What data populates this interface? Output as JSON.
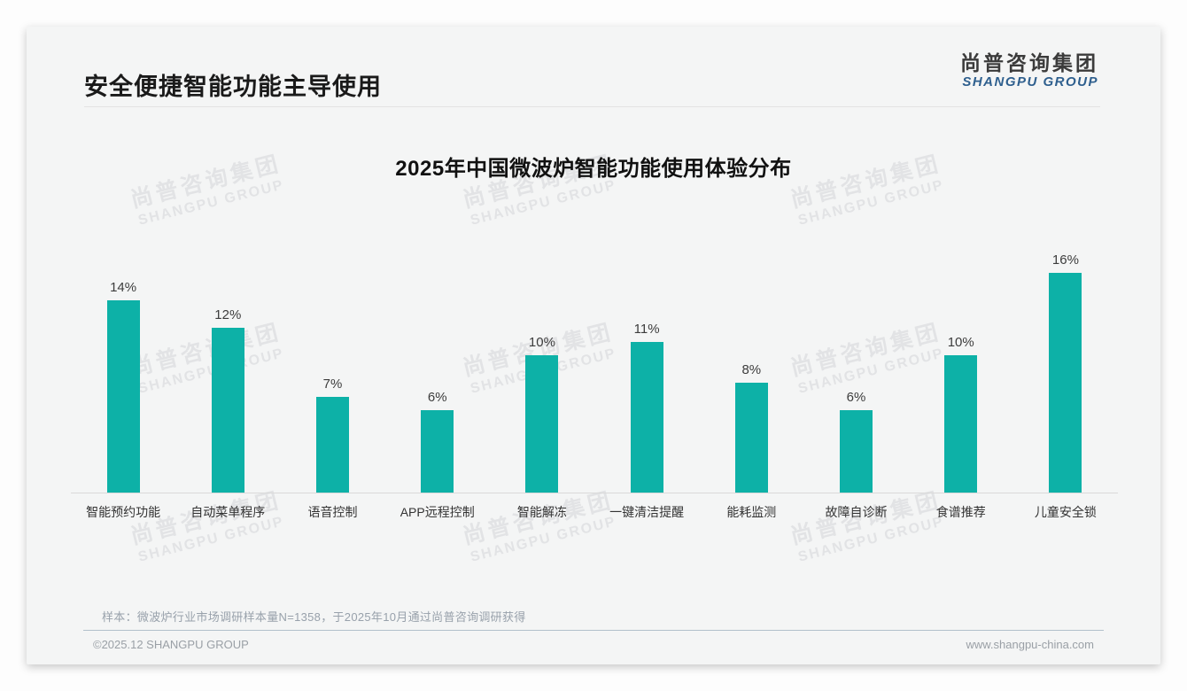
{
  "header": {
    "title": "安全便捷智能功能主导使用",
    "logo_cn": "尚普咨询集团",
    "logo_en": "SHANGPU GROUP"
  },
  "watermark": {
    "cn": "尚普咨询集团",
    "en": "SHANGPU GROUP"
  },
  "chart_data": {
    "type": "bar",
    "title": "2025年中国微波炉智能功能使用体验分布",
    "categories": [
      "智能预约功能",
      "自动菜单程序",
      "语音控制",
      "APP远程控制",
      "智能解冻",
      "一键清洁提醒",
      "能耗监测",
      "故障自诊断",
      "食谱推荐",
      "儿童安全锁"
    ],
    "values": [
      14,
      12,
      7,
      6,
      10,
      11,
      8,
      6,
      10,
      16
    ],
    "unit": "%",
    "xlabel": "",
    "ylabel": "",
    "ylim": [
      0,
      16
    ],
    "grid": false,
    "legend": false,
    "bar_color": "#0db1a7"
  },
  "colors": {
    "bar_teal": "#0db1a7",
    "logo_blue": "#2e5f8e",
    "card_background": "#f4f5f5",
    "footer_divider": "#b2c0cb"
  },
  "footer": {
    "sample_note": "样本：微波炉行业市场调研样本量N=1358，于2025年10月通过尚普咨询调研获得",
    "left": "©2025.12 SHANGPU GROUP",
    "right": "www.shangpu-china.com"
  }
}
